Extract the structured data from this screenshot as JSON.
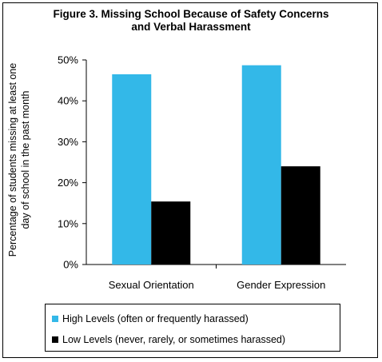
{
  "chart_data": {
    "type": "bar",
    "title_line1": "Figure 3. Missing School Because of Safety Concerns",
    "title_line2": "and Verbal Harassment",
    "ylabel_line1": "Percentage of students missing at least one",
    "ylabel_line2": "day of school in the past month",
    "xlabel": "",
    "categories": [
      "Sexual Orientation",
      "Gender Expression"
    ],
    "series": [
      {
        "name": "High Levels (often or frequently harassed)",
        "color": "#33b8e8",
        "values": [
          46.5,
          48.7
        ]
      },
      {
        "name": "Low Levels (never, rarely, or sometimes harassed)",
        "color": "#000000",
        "values": [
          15.4,
          24.0
        ]
      }
    ],
    "ylim": [
      0,
      50
    ],
    "yticks": [
      0,
      10,
      20,
      30,
      40,
      50
    ],
    "ytick_labels": [
      "0%",
      "10%",
      "20%",
      "30%",
      "40%",
      "50%"
    ],
    "grid": false,
    "legend_position": "bottom"
  }
}
